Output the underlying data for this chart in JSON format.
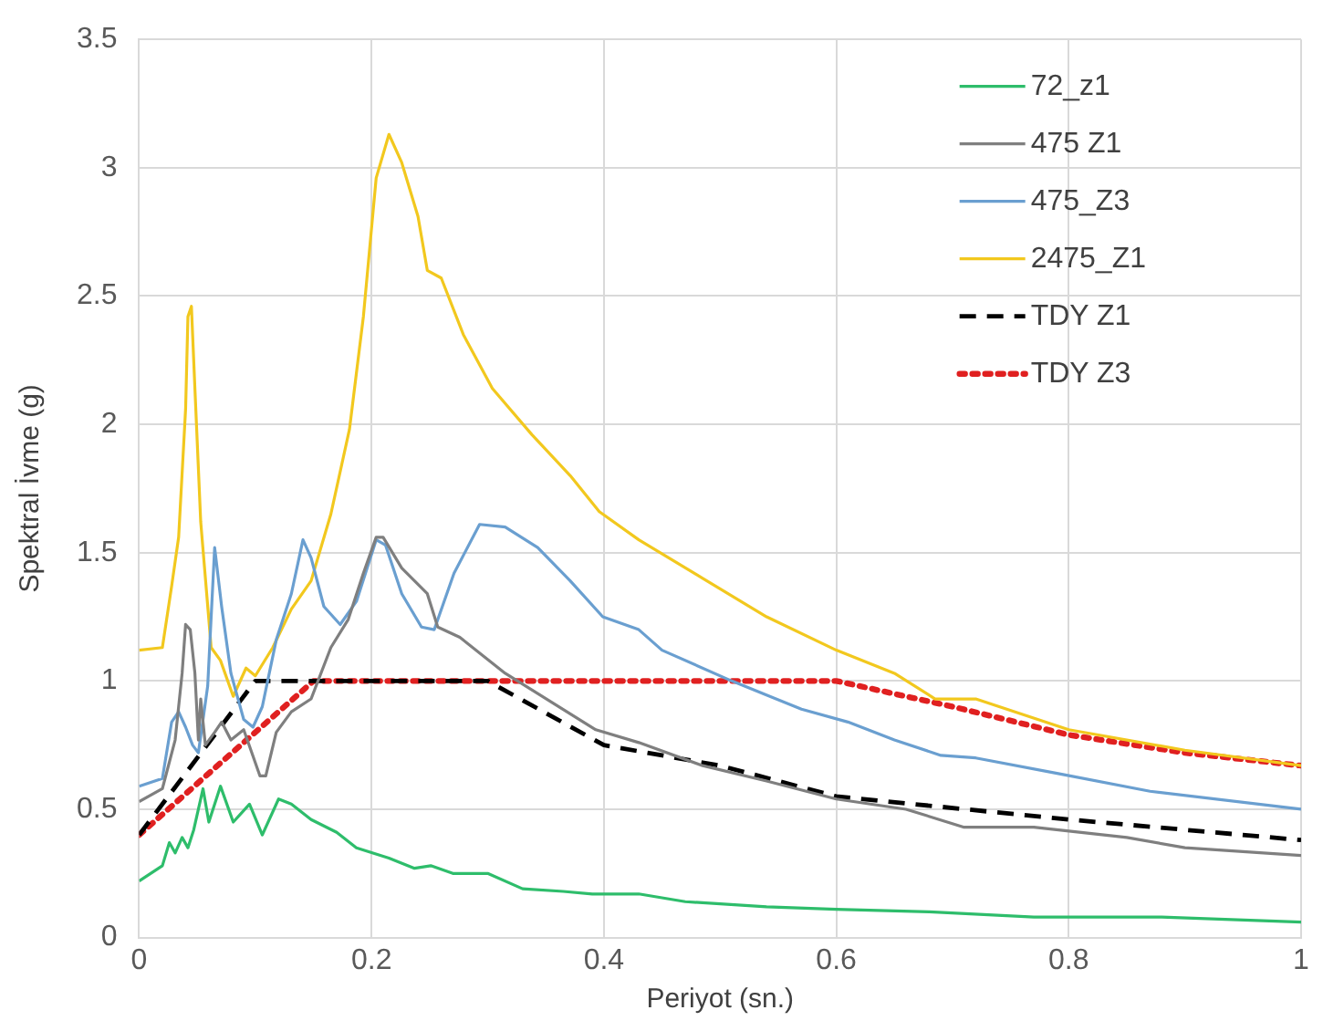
{
  "chart_data": {
    "type": "line",
    "xlabel": "Periyot (sn.)",
    "ylabel": "Spektral İvme (g)",
    "xlim": [
      0,
      1
    ],
    "xticks": [
      0,
      0.2,
      0.4,
      0.6,
      0.8,
      1
    ],
    "ylim": [
      0,
      3.5
    ],
    "yticks": [
      0,
      0.5,
      1,
      1.5,
      2,
      2.5,
      3,
      3.5
    ],
    "grid": true,
    "legend": "top right",
    "marker": "none",
    "series": [
      {
        "name": "72_z1",
        "color": "#2ebd6b",
        "line_style": "solid",
        "x": [
          0,
          0.02,
          0.026,
          0.031,
          0.037,
          0.042,
          0.047,
          0.055,
          0.06,
          0.07,
          0.081,
          0.095,
          0.106,
          0.12,
          0.131,
          0.148,
          0.17,
          0.187,
          0.215,
          0.237,
          0.251,
          0.27,
          0.3,
          0.33,
          0.365,
          0.39,
          0.43,
          0.47,
          0.54,
          0.6,
          0.68,
          0.77,
          0.88,
          1
        ],
        "values": [
          0.22,
          0.28,
          0.37,
          0.33,
          0.39,
          0.35,
          0.42,
          0.58,
          0.45,
          0.59,
          0.45,
          0.52,
          0.4,
          0.54,
          0.52,
          0.46,
          0.41,
          0.35,
          0.31,
          0.27,
          0.28,
          0.25,
          0.25,
          0.19,
          0.18,
          0.17,
          0.17,
          0.14,
          0.12,
          0.11,
          0.1,
          0.08,
          0.08,
          0.06
        ]
      },
      {
        "name": "475 Z1",
        "color": "#7f7f7f",
        "line_style": "solid",
        "x": [
          0,
          0.02,
          0.031,
          0.037,
          0.04,
          0.044,
          0.048,
          0.051,
          0.053,
          0.057,
          0.065,
          0.071,
          0.079,
          0.09,
          0.104,
          0.109,
          0.118,
          0.131,
          0.148,
          0.165,
          0.18,
          0.193,
          0.204,
          0.21,
          0.226,
          0.248,
          0.257,
          0.276,
          0.315,
          0.354,
          0.393,
          0.43,
          0.485,
          0.54,
          0.6,
          0.66,
          0.71,
          0.77,
          0.85,
          0.9,
          1
        ],
        "values": [
          0.53,
          0.58,
          0.77,
          1.03,
          1.22,
          1.2,
          1.03,
          0.77,
          0.93,
          0.75,
          0.8,
          0.84,
          0.77,
          0.81,
          0.63,
          0.63,
          0.8,
          0.88,
          0.93,
          1.13,
          1.24,
          1.42,
          1.56,
          1.56,
          1.44,
          1.34,
          1.21,
          1.17,
          1.03,
          0.92,
          0.81,
          0.76,
          0.67,
          0.61,
          0.54,
          0.5,
          0.43,
          0.43,
          0.39,
          0.35,
          0.32
        ]
      },
      {
        "name": "475_Z3",
        "color": "#6a9fd0",
        "line_style": "solid",
        "x": [
          0,
          0.02,
          0.028,
          0.034,
          0.04,
          0.046,
          0.051,
          0.059,
          0.065,
          0.071,
          0.079,
          0.09,
          0.098,
          0.106,
          0.118,
          0.131,
          0.141,
          0.148,
          0.159,
          0.173,
          0.187,
          0.204,
          0.212,
          0.226,
          0.243,
          0.254,
          0.271,
          0.293,
          0.315,
          0.343,
          0.371,
          0.399,
          0.43,
          0.45,
          0.51,
          0.57,
          0.61,
          0.65,
          0.69,
          0.72,
          0.79,
          0.87,
          1
        ],
        "values": [
          0.59,
          0.62,
          0.84,
          0.88,
          0.82,
          0.75,
          0.72,
          0.98,
          1.52,
          1.29,
          1.03,
          0.85,
          0.82,
          0.9,
          1.16,
          1.34,
          1.55,
          1.48,
          1.29,
          1.22,
          1.31,
          1.55,
          1.53,
          1.34,
          1.21,
          1.2,
          1.42,
          1.61,
          1.6,
          1.52,
          1.39,
          1.25,
          1.2,
          1.12,
          1,
          0.89,
          0.84,
          0.77,
          0.71,
          0.7,
          0.64,
          0.57,
          0.5
        ]
      },
      {
        "name": "2475_Z1",
        "color": "#f2c81e",
        "line_style": "solid",
        "x": [
          0,
          0.02,
          0.028,
          0.034,
          0.04,
          0.042,
          0.045,
          0.048,
          0.053,
          0.062,
          0.07,
          0.081,
          0.092,
          0.1,
          0.115,
          0.131,
          0.148,
          0.165,
          0.181,
          0.193,
          0.204,
          0.215,
          0.226,
          0.24,
          0.248,
          0.26,
          0.279,
          0.304,
          0.338,
          0.371,
          0.396,
          0.43,
          0.485,
          0.54,
          0.6,
          0.65,
          0.685,
          0.72,
          0.8,
          0.9,
          1
        ],
        "values": [
          1.12,
          1.13,
          1.37,
          1.56,
          2.06,
          2.42,
          2.46,
          2.14,
          1.62,
          1.13,
          1.08,
          0.94,
          1.05,
          1.02,
          1.13,
          1.28,
          1.39,
          1.65,
          1.98,
          2.42,
          2.96,
          3.13,
          3.02,
          2.81,
          2.6,
          2.57,
          2.35,
          2.14,
          1.96,
          1.8,
          1.66,
          1.55,
          1.4,
          1.25,
          1.12,
          1.03,
          0.93,
          0.93,
          0.81,
          0.73,
          0.67
        ]
      },
      {
        "name": "TDY Z1",
        "color": "#000000",
        "line_style": "dashed",
        "x": [
          0,
          0.1,
          0.3,
          0.4,
          0.5,
          0.6,
          0.8,
          1
        ],
        "values": [
          0.4,
          1,
          1,
          0.75,
          0.67,
          0.55,
          0.46,
          0.38
        ]
      },
      {
        "name": "TDY Z3",
        "color": "#e02020",
        "line_style": "dotted",
        "x": [
          0,
          0.15,
          0.6,
          0.7,
          0.8,
          0.9,
          1
        ],
        "values": [
          0.4,
          1,
          1,
          0.9,
          0.79,
          0.72,
          0.67
        ]
      }
    ]
  }
}
